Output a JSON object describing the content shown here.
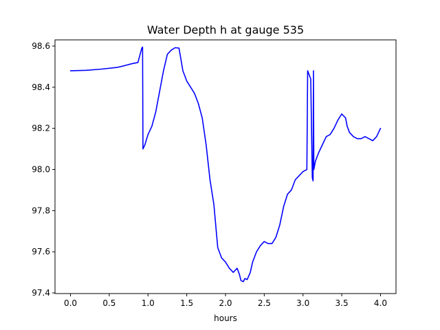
{
  "chart_data": {
    "type": "line",
    "title": "Water Depth h at gauge 535",
    "xlabel": "hours",
    "ylabel": "",
    "xlim": [
      -0.2,
      4.2
    ],
    "ylim": [
      97.397,
      98.63
    ],
    "x_ticks": [
      {
        "value": 0.0,
        "label": "0.0"
      },
      {
        "value": 0.5,
        "label": "0.5"
      },
      {
        "value": 1.0,
        "label": "1.0"
      },
      {
        "value": 1.5,
        "label": "1.5"
      },
      {
        "value": 2.0,
        "label": "2.0"
      },
      {
        "value": 2.5,
        "label": "2.5"
      },
      {
        "value": 3.0,
        "label": "3.0"
      },
      {
        "value": 3.5,
        "label": "3.5"
      },
      {
        "value": 4.0,
        "label": "4.0"
      }
    ],
    "y_ticks": [
      {
        "value": 97.4,
        "label": "97.4"
      },
      {
        "value": 97.6,
        "label": "97.6"
      },
      {
        "value": 97.8,
        "label": "97.8"
      },
      {
        "value": 98.0,
        "label": "98.0"
      },
      {
        "value": 98.2,
        "label": "98.2"
      },
      {
        "value": 98.4,
        "label": "98.4"
      },
      {
        "value": 98.6,
        "label": "98.6"
      }
    ],
    "grid": false,
    "series": [
      {
        "color": "#0000ff",
        "x": [
          0.0,
          0.2,
          0.4,
          0.6,
          0.7,
          0.8,
          0.87,
          0.92,
          0.93,
          0.935,
          0.96,
          1.0,
          1.05,
          1.1,
          1.15,
          1.2,
          1.25,
          1.3,
          1.35,
          1.4,
          1.45,
          1.5,
          1.55,
          1.6,
          1.65,
          1.7,
          1.75,
          1.8,
          1.85,
          1.9,
          1.95,
          2.0,
          2.05,
          2.1,
          2.15,
          2.18,
          2.2,
          2.23,
          2.25,
          2.28,
          2.32,
          2.35,
          2.4,
          2.45,
          2.5,
          2.55,
          2.6,
          2.65,
          2.7,
          2.75,
          2.8,
          2.85,
          2.9,
          2.95,
          3.0,
          3.05,
          3.06,
          3.07,
          3.1,
          3.12,
          3.13,
          3.135,
          3.14,
          3.15,
          3.16,
          3.2,
          3.25,
          3.3,
          3.35,
          3.4,
          3.45,
          3.5,
          3.55,
          3.57,
          3.6,
          3.65,
          3.7,
          3.75,
          3.8,
          3.85,
          3.9,
          3.95,
          4.0
        ],
        "y": [
          98.48,
          98.482,
          98.488,
          98.496,
          98.505,
          98.515,
          98.52,
          98.59,
          98.595,
          98.1,
          98.12,
          98.17,
          98.21,
          98.28,
          98.38,
          98.48,
          98.56,
          98.58,
          98.592,
          98.59,
          98.48,
          98.43,
          98.4,
          98.37,
          98.32,
          98.25,
          98.12,
          97.95,
          97.83,
          97.62,
          97.57,
          97.55,
          97.52,
          97.5,
          97.52,
          97.49,
          97.46,
          97.455,
          97.47,
          97.465,
          97.5,
          97.55,
          97.6,
          97.63,
          97.65,
          97.64,
          97.64,
          97.67,
          97.73,
          97.82,
          97.88,
          97.9,
          97.95,
          97.97,
          97.99,
          98.0,
          98.48,
          98.47,
          98.44,
          97.96,
          97.945,
          98.48,
          98.0,
          98.02,
          98.04,
          98.08,
          98.12,
          98.16,
          98.17,
          98.2,
          98.24,
          98.27,
          98.25,
          98.21,
          98.18,
          98.16,
          98.15,
          98.15,
          98.16,
          98.15,
          98.14,
          98.16,
          98.2
        ]
      }
    ]
  }
}
